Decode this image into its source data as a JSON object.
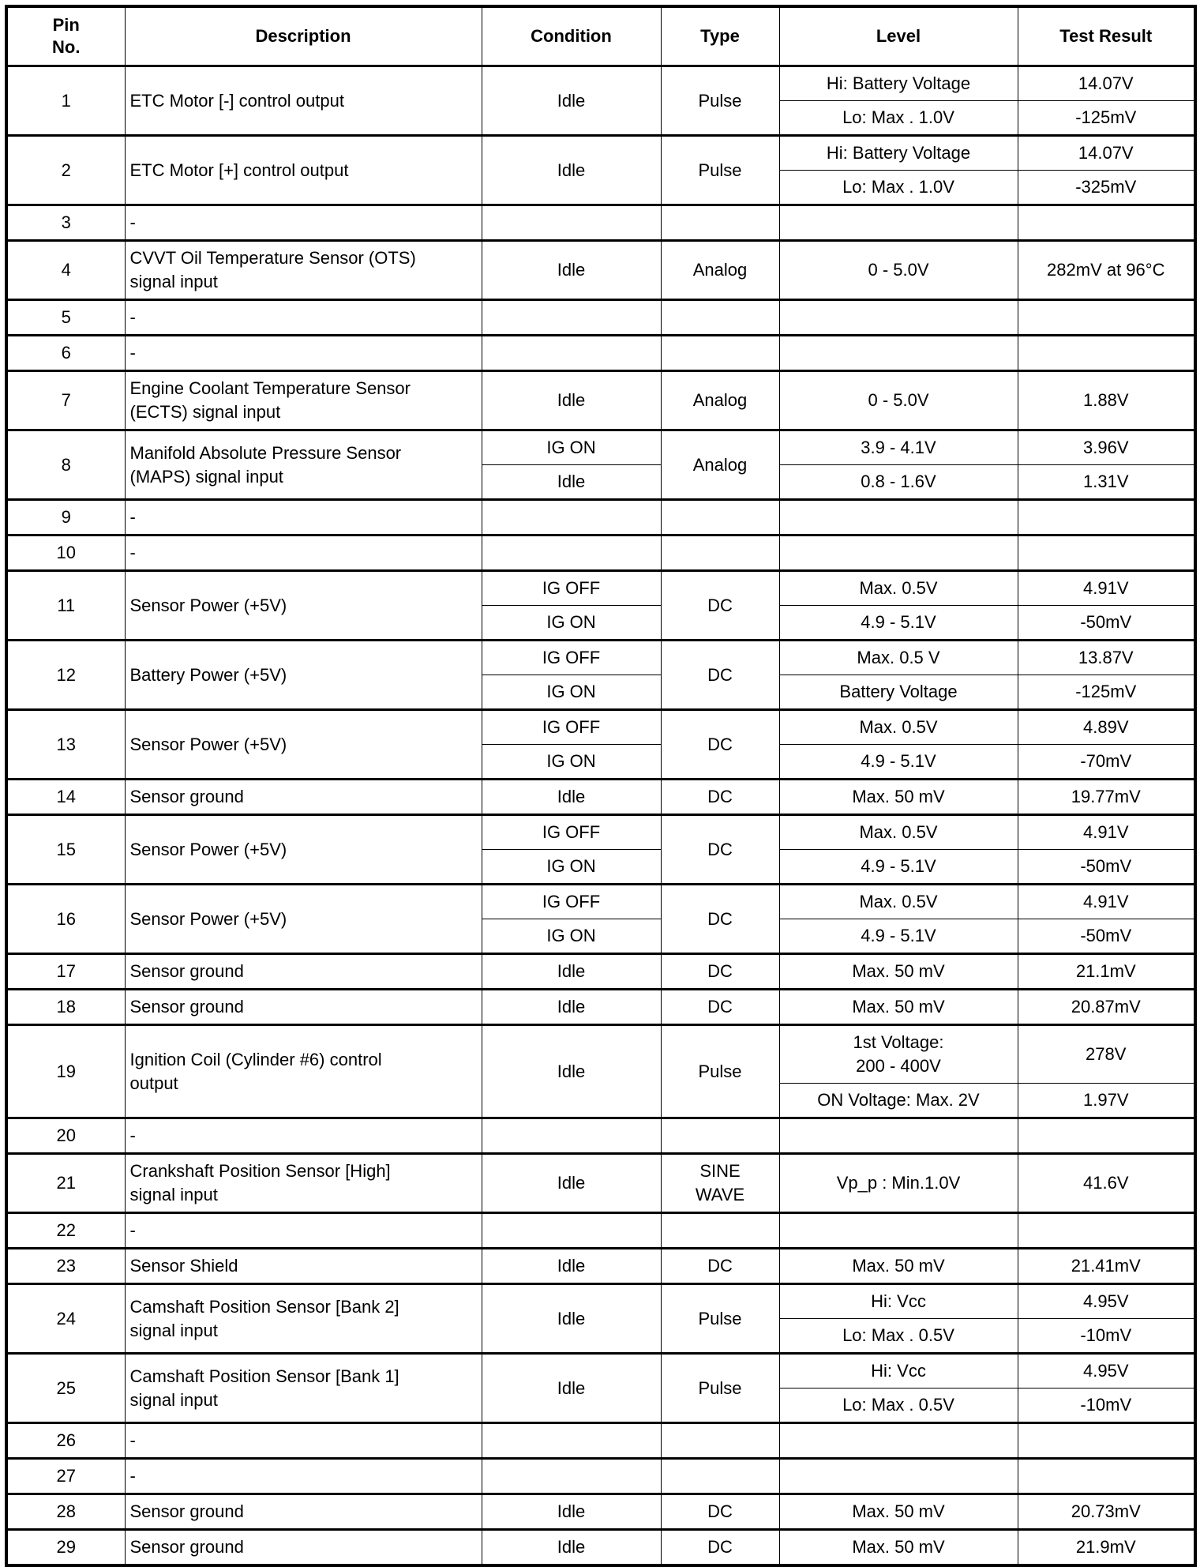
{
  "headers": [
    "Pin\nNo.",
    "Description",
    "Condition",
    "Type",
    "Level",
    "Test Result"
  ],
  "pins": [
    {
      "pin": "1",
      "description": "ETC Motor [-] control output",
      "condition": "Idle",
      "type": "Pulse",
      "rows": [
        {
          "level": "Hi: Battery Voltage",
          "result": "14.07V"
        },
        {
          "level": "Lo: Max . 1.0V",
          "result": "-125mV"
        }
      ]
    },
    {
      "pin": "2",
      "description": "ETC Motor [+] control output",
      "condition": "Idle",
      "type": "Pulse",
      "rows": [
        {
          "level": "Hi: Battery Voltage",
          "result": "14.07V"
        },
        {
          "level": "Lo: Max . 1.0V",
          "result": "-325mV"
        }
      ]
    },
    {
      "pin": "3",
      "description": "-",
      "condition": "",
      "type": "",
      "rows": [
        {
          "level": "",
          "result": ""
        }
      ]
    },
    {
      "pin": "4",
      "description": "CVVT Oil Temperature Sensor (OTS)\nsignal input",
      "condition": "Idle",
      "type": "Analog",
      "rows": [
        {
          "level": "0 - 5.0V",
          "result": "282mV at 96°C"
        }
      ]
    },
    {
      "pin": "5",
      "description": "-",
      "condition": "",
      "type": "",
      "rows": [
        {
          "level": "",
          "result": ""
        }
      ]
    },
    {
      "pin": "6",
      "description": "-",
      "condition": "",
      "type": "",
      "rows": [
        {
          "level": "",
          "result": ""
        }
      ]
    },
    {
      "pin": "7",
      "description": "Engine Coolant Temperature Sensor\n(ECTS) signal input",
      "condition": "Idle",
      "type": "Analog",
      "rows": [
        {
          "level": "0 - 5.0V",
          "result": "1.88V"
        }
      ]
    },
    {
      "pin": "8",
      "description": "Manifold Absolute Pressure Sensor\n(MAPS) signal input",
      "type": "Analog",
      "rows": [
        {
          "condition": "IG ON",
          "level": "3.9 - 4.1V",
          "result": "3.96V"
        },
        {
          "condition": "Idle",
          "level": "0.8 - 1.6V",
          "result": "1.31V"
        }
      ]
    },
    {
      "pin": "9",
      "description": "-",
      "condition": "",
      "type": "",
      "rows": [
        {
          "level": "",
          "result": ""
        }
      ]
    },
    {
      "pin": "10",
      "description": "-",
      "condition": "",
      "type": "",
      "rows": [
        {
          "level": "",
          "result": ""
        }
      ]
    },
    {
      "pin": "11",
      "description": "Sensor Power (+5V)",
      "type": "DC",
      "rows": [
        {
          "condition": "IG OFF",
          "level": "Max. 0.5V",
          "result": "4.91V"
        },
        {
          "condition": "IG ON",
          "level": "4.9 - 5.1V",
          "result": "-50mV"
        }
      ]
    },
    {
      "pin": "12",
      "description": "Battery Power (+5V)",
      "type": "DC",
      "rows": [
        {
          "condition": "IG OFF",
          "level": "Max. 0.5 V",
          "result": "13.87V"
        },
        {
          "condition": "IG ON",
          "level": "Battery Voltage",
          "result": "-125mV"
        }
      ]
    },
    {
      "pin": "13",
      "description": "Sensor Power (+5V)",
      "type": "DC",
      "rows": [
        {
          "condition": "IG OFF",
          "level": "Max. 0.5V",
          "result": "4.89V"
        },
        {
          "condition": "IG ON",
          "level": "4.9 - 5.1V",
          "result": "-70mV"
        }
      ]
    },
    {
      "pin": "14",
      "description": "Sensor ground",
      "condition": "Idle",
      "type": "DC",
      "rows": [
        {
          "level": "Max. 50 mV",
          "result": "19.77mV"
        }
      ]
    },
    {
      "pin": "15",
      "description": "Sensor Power (+5V)",
      "type": "DC",
      "rows": [
        {
          "condition": "IG OFF",
          "level": "Max. 0.5V",
          "result": "4.91V"
        },
        {
          "condition": "IG ON",
          "level": "4.9 - 5.1V",
          "result": "-50mV"
        }
      ]
    },
    {
      "pin": "16",
      "description": "Sensor Power (+5V)",
      "type": "DC",
      "rows": [
        {
          "condition": "IG OFF",
          "level": "Max. 0.5V",
          "result": "4.91V"
        },
        {
          "condition": "IG ON",
          "level": "4.9 - 5.1V",
          "result": "-50mV"
        }
      ]
    },
    {
      "pin": "17",
      "description": "Sensor ground",
      "condition": "Idle",
      "type": "DC",
      "rows": [
        {
          "level": "Max. 50 mV",
          "result": "21.1mV"
        }
      ]
    },
    {
      "pin": "18",
      "description": "Sensor ground",
      "condition": "Idle",
      "type": "DC",
      "rows": [
        {
          "level": "Max. 50 mV",
          "result": "20.87mV"
        }
      ]
    },
    {
      "pin": "19",
      "description": "Ignition Coil (Cylinder #6) control\noutput",
      "condition": "Idle",
      "type": "Pulse",
      "rows": [
        {
          "level": "1st Voltage:\n200 - 400V",
          "result": "278V"
        },
        {
          "level": "ON Voltage: Max. 2V",
          "result": "1.97V"
        }
      ]
    },
    {
      "pin": "20",
      "description": "-",
      "condition": "",
      "type": "",
      "rows": [
        {
          "level": "",
          "result": ""
        }
      ]
    },
    {
      "pin": "21",
      "description": "Crankshaft Position Sensor [High]\nsignal input",
      "condition": "Idle",
      "type": "SINE\nWAVE",
      "rows": [
        {
          "level": "Vp_p : Min.1.0V",
          "result": "41.6V"
        }
      ]
    },
    {
      "pin": "22",
      "description": "-",
      "condition": "",
      "type": "",
      "rows": [
        {
          "level": "",
          "result": ""
        }
      ]
    },
    {
      "pin": "23",
      "description": "Sensor Shield",
      "condition": "Idle",
      "type": "DC",
      "rows": [
        {
          "level": "Max. 50 mV",
          "result": "21.41mV"
        }
      ]
    },
    {
      "pin": "24",
      "description": "Camshaft Position Sensor [Bank 2]\nsignal input",
      "condition": "Idle",
      "type": "Pulse",
      "rows": [
        {
          "level": "Hi: Vcc",
          "result": "4.95V"
        },
        {
          "level": "Lo: Max . 0.5V",
          "result": "-10mV"
        }
      ]
    },
    {
      "pin": "25",
      "description": "Camshaft Position Sensor [Bank 1]\nsignal input",
      "condition": "Idle",
      "type": "Pulse",
      "rows": [
        {
          "level": "Hi: Vcc",
          "result": "4.95V"
        },
        {
          "level": "Lo: Max . 0.5V",
          "result": "-10mV"
        }
      ]
    },
    {
      "pin": "26",
      "description": "-",
      "condition": "",
      "type": "",
      "rows": [
        {
          "level": "",
          "result": ""
        }
      ]
    },
    {
      "pin": "27",
      "description": "-",
      "condition": "",
      "type": "",
      "rows": [
        {
          "level": "",
          "result": ""
        }
      ]
    },
    {
      "pin": "28",
      "description": "Sensor ground",
      "condition": "Idle",
      "type": "DC",
      "rows": [
        {
          "level": "Max. 50 mV",
          "result": "20.73mV"
        }
      ]
    },
    {
      "pin": "29",
      "description": "Sensor ground",
      "condition": "Idle",
      "type": "DC",
      "rows": [
        {
          "level": "Max. 50 mV",
          "result": "21.9mV"
        }
      ]
    }
  ]
}
